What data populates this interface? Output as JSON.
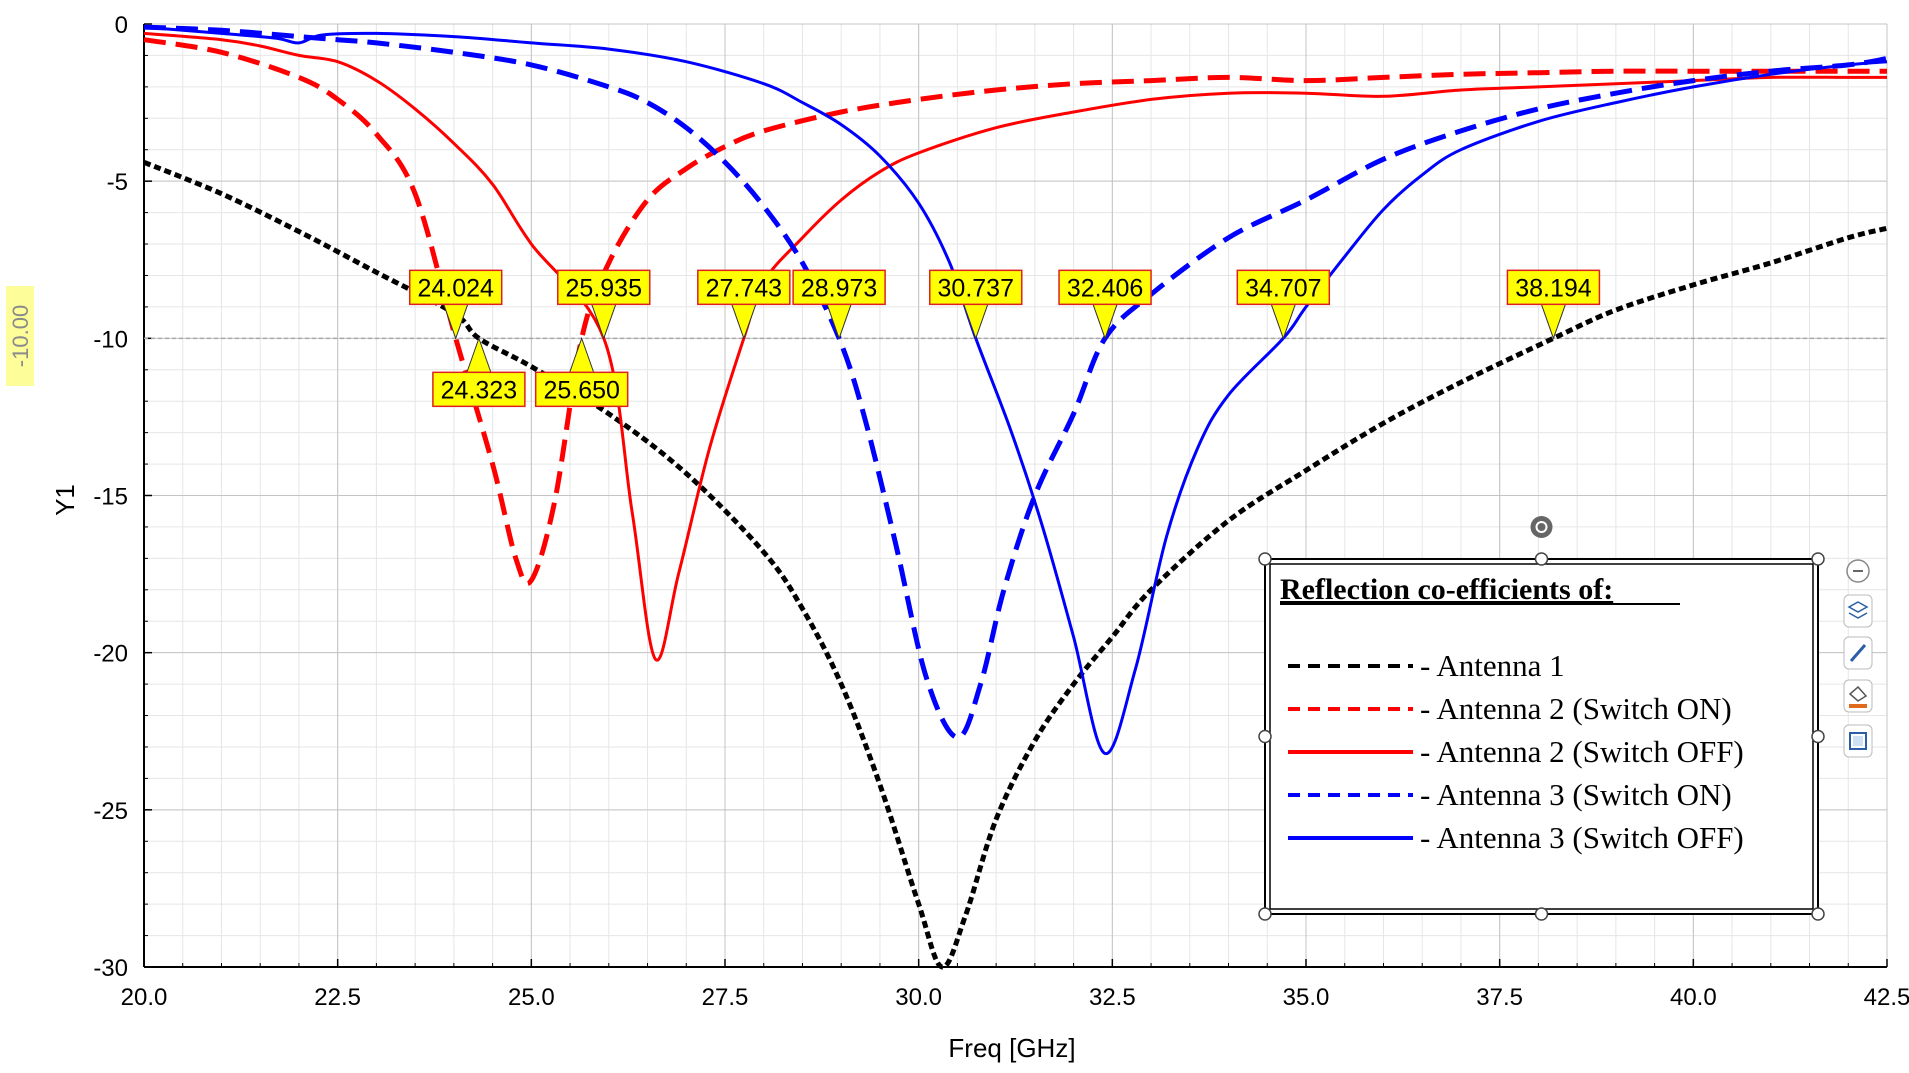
{
  "chart_data": {
    "type": "line",
    "xlabel": "Freq [GHz]",
    "ylabel": "Y1",
    "xlim": [
      20.0,
      42.5
    ],
    "ylim": [
      -30,
      0
    ],
    "x_ticks": [
      "20.0",
      "22.5",
      "25.0",
      "27.5",
      "30.0",
      "32.5",
      "35.0",
      "37.5",
      "40.0",
      "42.5"
    ],
    "y_ticks": [
      "0",
      "-5",
      "-10",
      "-15",
      "-20",
      "-25",
      "-30"
    ],
    "grid": true,
    "reference_line": {
      "y": -10,
      "label": "-10.00"
    },
    "legend": {
      "title": "Reflection co-efficients of:",
      "placement": "bottom-right",
      "entries": [
        "- Antenna 1",
        "- Antenna 2 (Switch ON)",
        "- Antenna 2 (Switch OFF)",
        "- Antenna 3 (Switch ON)",
        "- Antenna 3 (Switch OFF)"
      ]
    },
    "series": [
      {
        "name": "Antenna 1",
        "color": "#000000",
        "dash": "dashed",
        "points": [
          [
            20.0,
            -4.4
          ],
          [
            21.0,
            -5.4
          ],
          [
            22.0,
            -6.6
          ],
          [
            23.0,
            -7.9
          ],
          [
            24.0,
            -9.2
          ],
          [
            24.323,
            -10.0
          ],
          [
            25.0,
            -10.9
          ],
          [
            26.0,
            -12.4
          ],
          [
            27.0,
            -14.3
          ],
          [
            28.0,
            -16.8
          ],
          [
            28.5,
            -18.6
          ],
          [
            29.0,
            -21.0
          ],
          [
            29.5,
            -24.2
          ],
          [
            30.0,
            -28.0
          ],
          [
            30.3,
            -30.0
          ],
          [
            30.6,
            -28.4
          ],
          [
            31.0,
            -25.3
          ],
          [
            31.5,
            -22.8
          ],
          [
            32.0,
            -21.0
          ],
          [
            32.5,
            -19.5
          ],
          [
            33.0,
            -18.0
          ],
          [
            34.0,
            -15.8
          ],
          [
            35.0,
            -14.2
          ],
          [
            36.0,
            -12.7
          ],
          [
            37.0,
            -11.4
          ],
          [
            38.194,
            -10.0
          ],
          [
            39.0,
            -9.1
          ],
          [
            40.0,
            -8.3
          ],
          [
            41.0,
            -7.6
          ],
          [
            42.0,
            -6.8
          ],
          [
            42.5,
            -6.5
          ]
        ]
      },
      {
        "name": "Antenna 2 (Switch ON)",
        "color": "#ff0000",
        "dash": "dashed",
        "points": [
          [
            20.0,
            -0.5
          ],
          [
            21.0,
            -0.9
          ],
          [
            22.0,
            -1.7
          ],
          [
            22.5,
            -2.4
          ],
          [
            23.0,
            -3.5
          ],
          [
            23.5,
            -5.4
          ],
          [
            24.024,
            -10.0
          ],
          [
            24.5,
            -14.0
          ],
          [
            24.8,
            -17.0
          ],
          [
            25.0,
            -17.7
          ],
          [
            25.3,
            -15.2
          ],
          [
            25.65,
            -10.0
          ],
          [
            26.0,
            -7.6
          ],
          [
            26.5,
            -5.6
          ],
          [
            27.0,
            -4.6
          ],
          [
            27.5,
            -3.9
          ],
          [
            28.0,
            -3.4
          ],
          [
            29.0,
            -2.8
          ],
          [
            30.0,
            -2.4
          ],
          [
            31.0,
            -2.1
          ],
          [
            32.0,
            -1.9
          ],
          [
            33.0,
            -1.8
          ],
          [
            34.0,
            -1.7
          ],
          [
            35.0,
            -1.8
          ],
          [
            36.0,
            -1.7
          ],
          [
            37.0,
            -1.6
          ],
          [
            38.0,
            -1.55
          ],
          [
            39.0,
            -1.5
          ],
          [
            40.0,
            -1.5
          ],
          [
            41.0,
            -1.5
          ],
          [
            42.0,
            -1.5
          ],
          [
            42.5,
            -1.5
          ]
        ]
      },
      {
        "name": "Antenna 2 (Switch OFF)",
        "color": "#ff0000",
        "dash": "solid",
        "points": [
          [
            20.0,
            -0.3
          ],
          [
            21.0,
            -0.5
          ],
          [
            21.5,
            -0.7
          ],
          [
            22.0,
            -1.0
          ],
          [
            22.5,
            -1.2
          ],
          [
            23.0,
            -1.8
          ],
          [
            23.5,
            -2.7
          ],
          [
            24.0,
            -3.8
          ],
          [
            24.5,
            -5.1
          ],
          [
            25.0,
            -7.0
          ],
          [
            25.935,
            -10.0
          ],
          [
            26.3,
            -15.5
          ],
          [
            26.6,
            -20.2
          ],
          [
            26.9,
            -17.5
          ],
          [
            27.3,
            -13.5
          ],
          [
            27.743,
            -10.0
          ],
          [
            28.0,
            -8.2
          ],
          [
            28.5,
            -6.8
          ],
          [
            29.0,
            -5.6
          ],
          [
            29.5,
            -4.7
          ],
          [
            30.0,
            -4.1
          ],
          [
            31.0,
            -3.3
          ],
          [
            32.0,
            -2.8
          ],
          [
            33.0,
            -2.4
          ],
          [
            34.0,
            -2.2
          ],
          [
            35.0,
            -2.2
          ],
          [
            36.0,
            -2.3
          ],
          [
            37.0,
            -2.1
          ],
          [
            38.0,
            -2.0
          ],
          [
            39.0,
            -1.9
          ],
          [
            40.0,
            -1.8
          ],
          [
            41.0,
            -1.7
          ],
          [
            42.0,
            -1.7
          ],
          [
            42.5,
            -1.7
          ]
        ]
      },
      {
        "name": "Antenna 3 (Switch ON)",
        "color": "#0000ff",
        "dash": "dashed",
        "points": [
          [
            20.0,
            -0.1
          ],
          [
            21.0,
            -0.2
          ],
          [
            22.0,
            -0.4
          ],
          [
            22.5,
            -0.5
          ],
          [
            23.0,
            -0.6
          ],
          [
            24.0,
            -0.9
          ],
          [
            25.0,
            -1.3
          ],
          [
            26.0,
            -2.0
          ],
          [
            26.5,
            -2.5
          ],
          [
            27.0,
            -3.3
          ],
          [
            27.5,
            -4.4
          ],
          [
            28.0,
            -5.8
          ],
          [
            28.5,
            -7.6
          ],
          [
            28.973,
            -10.0
          ],
          [
            29.3,
            -12.5
          ],
          [
            29.7,
            -16.5
          ],
          [
            30.1,
            -20.8
          ],
          [
            30.5,
            -22.7
          ],
          [
            30.8,
            -21.0
          ],
          [
            31.1,
            -18.0
          ],
          [
            31.5,
            -15.0
          ],
          [
            32.0,
            -12.4
          ],
          [
            32.406,
            -10.0
          ],
          [
            33.0,
            -8.6
          ],
          [
            34.0,
            -6.8
          ],
          [
            35.0,
            -5.6
          ],
          [
            36.0,
            -4.3
          ],
          [
            37.0,
            -3.4
          ],
          [
            38.0,
            -2.7
          ],
          [
            39.0,
            -2.2
          ],
          [
            40.0,
            -1.8
          ],
          [
            41.0,
            -1.5
          ],
          [
            42.0,
            -1.3
          ],
          [
            42.5,
            -1.1
          ]
        ]
      },
      {
        "name": "Antenna 3 (Switch OFF)",
        "color": "#0000ff",
        "dash": "solid",
        "points": [
          [
            20.0,
            -0.1
          ],
          [
            21.0,
            -0.3
          ],
          [
            21.7,
            -0.45
          ],
          [
            22.0,
            -0.6
          ],
          [
            22.3,
            -0.35
          ],
          [
            23.0,
            -0.3
          ],
          [
            24.0,
            -0.4
          ],
          [
            25.0,
            -0.6
          ],
          [
            26.0,
            -0.8
          ],
          [
            27.0,
            -1.2
          ],
          [
            28.0,
            -1.9
          ],
          [
            28.5,
            -2.5
          ],
          [
            29.0,
            -3.2
          ],
          [
            29.5,
            -4.2
          ],
          [
            30.0,
            -5.7
          ],
          [
            30.4,
            -7.6
          ],
          [
            30.737,
            -10.0
          ],
          [
            31.2,
            -13.0
          ],
          [
            31.6,
            -16.0
          ],
          [
            32.0,
            -19.5
          ],
          [
            32.4,
            -23.2
          ],
          [
            32.8,
            -20.5
          ],
          [
            33.2,
            -16.3
          ],
          [
            33.6,
            -13.5
          ],
          [
            34.0,
            -11.8
          ],
          [
            34.707,
            -10.0
          ],
          [
            35.0,
            -9.0
          ],
          [
            35.5,
            -7.4
          ],
          [
            36.0,
            -5.9
          ],
          [
            36.5,
            -4.8
          ],
          [
            37.0,
            -4.0
          ],
          [
            38.0,
            -3.1
          ],
          [
            39.0,
            -2.5
          ],
          [
            40.0,
            -2.0
          ],
          [
            41.0,
            -1.6
          ],
          [
            42.0,
            -1.3
          ],
          [
            42.5,
            -1.2
          ]
        ]
      }
    ],
    "markers": [
      {
        "label": "24.024",
        "x": 24.024,
        "y": -10,
        "position": "above"
      },
      {
        "label": "24.323",
        "x": 24.323,
        "y": -10,
        "position": "below"
      },
      {
        "label": "25.935",
        "x": 25.935,
        "y": -10,
        "position": "above"
      },
      {
        "label": "25.650",
        "x": 25.65,
        "y": -10,
        "position": "below"
      },
      {
        "label": "27.743",
        "x": 27.743,
        "y": -10,
        "position": "above"
      },
      {
        "label": "28.973",
        "x": 28.973,
        "y": -10,
        "position": "above"
      },
      {
        "label": "30.737",
        "x": 30.737,
        "y": -10,
        "position": "above"
      },
      {
        "label": "32.406",
        "x": 32.406,
        "y": -10,
        "position": "above"
      },
      {
        "label": "34.707",
        "x": 34.707,
        "y": -10,
        "position": "above"
      },
      {
        "label": "38.194",
        "x": 38.194,
        "y": -10,
        "position": "above"
      }
    ]
  },
  "side_toolbar": {
    "icons": [
      "minus-icon",
      "layers-icon",
      "pen-icon",
      "fill-icon",
      "frame-icon"
    ]
  }
}
